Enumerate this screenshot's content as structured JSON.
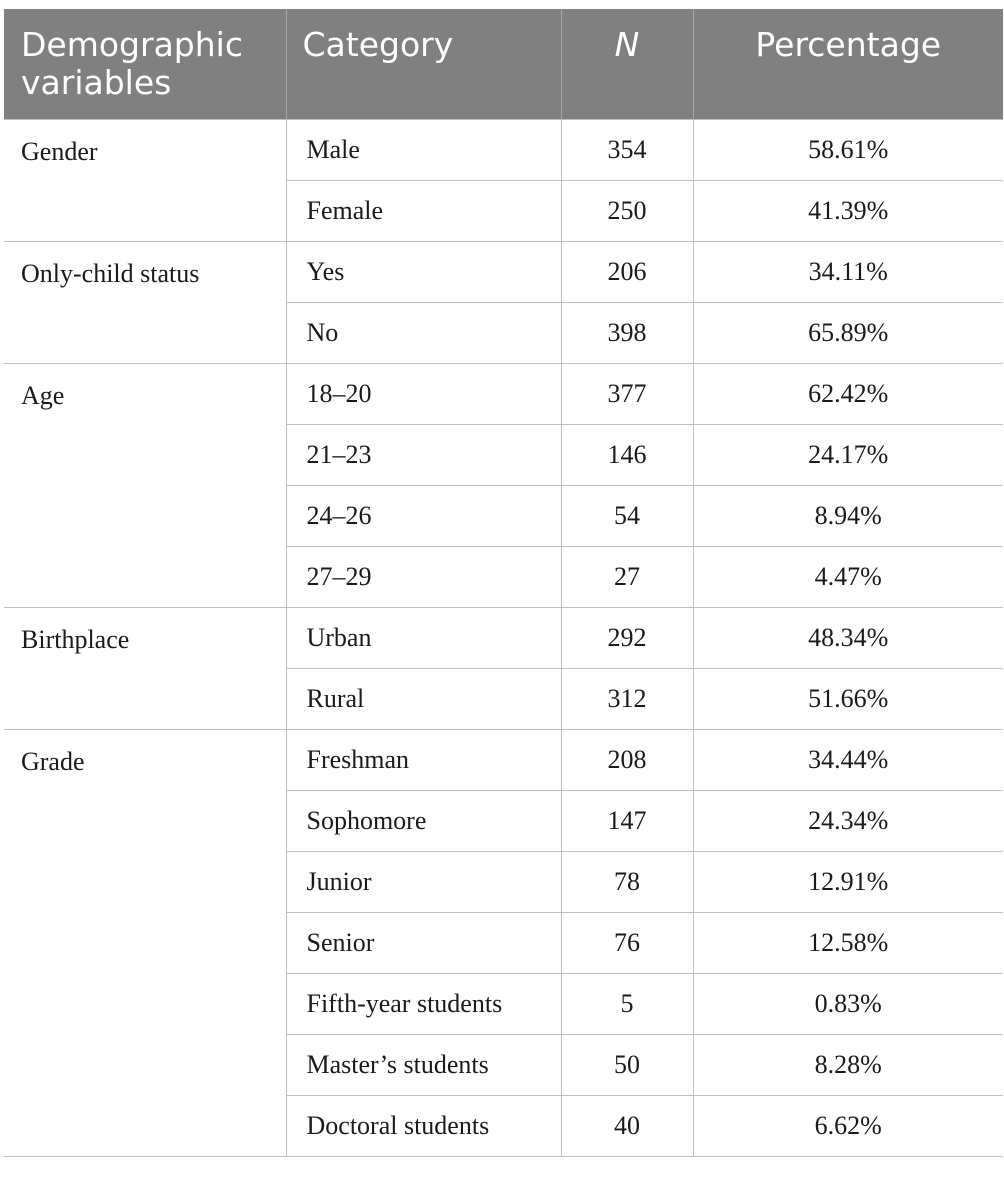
{
  "table": {
    "headers": {
      "demographic": "Demographic variables",
      "category": "Category",
      "n": "N",
      "percentage": "Percentage"
    },
    "groups": [
      {
        "variable": "Gender",
        "rows": [
          {
            "category": "Male",
            "n": "354",
            "percentage": "58.61%"
          },
          {
            "category": "Female",
            "n": "250",
            "percentage": "41.39%"
          }
        ]
      },
      {
        "variable": "Only-child status",
        "rows": [
          {
            "category": "Yes",
            "n": "206",
            "percentage": "34.11%"
          },
          {
            "category": "No",
            "n": "398",
            "percentage": "65.89%"
          }
        ]
      },
      {
        "variable": "Age",
        "rows": [
          {
            "category": "18–20",
            "n": "377",
            "percentage": "62.42%"
          },
          {
            "category": "21–23",
            "n": "146",
            "percentage": "24.17%"
          },
          {
            "category": "24–26",
            "n": "54",
            "percentage": "8.94%"
          },
          {
            "category": "27–29",
            "n": "27",
            "percentage": "4.47%"
          }
        ]
      },
      {
        "variable": "Birthplace",
        "rows": [
          {
            "category": "Urban",
            "n": "292",
            "percentage": "48.34%"
          },
          {
            "category": "Rural",
            "n": "312",
            "percentage": "51.66%"
          }
        ]
      },
      {
        "variable": "Grade",
        "rows": [
          {
            "category": "Freshman",
            "n": "208",
            "percentage": "34.44%"
          },
          {
            "category": "Sophomore",
            "n": "147",
            "percentage": "24.34%"
          },
          {
            "category": "Junior",
            "n": "78",
            "percentage": "12.91%"
          },
          {
            "category": "Senior",
            "n": "76",
            "percentage": "12.58%"
          },
          {
            "category": "Fifth-year students",
            "n": "5",
            "percentage": "0.83%"
          },
          {
            "category": "Master’s students",
            "n": "50",
            "percentage": "8.28%"
          },
          {
            "category": "Doctoral students",
            "n": "40",
            "percentage": "6.62%"
          }
        ]
      }
    ]
  }
}
